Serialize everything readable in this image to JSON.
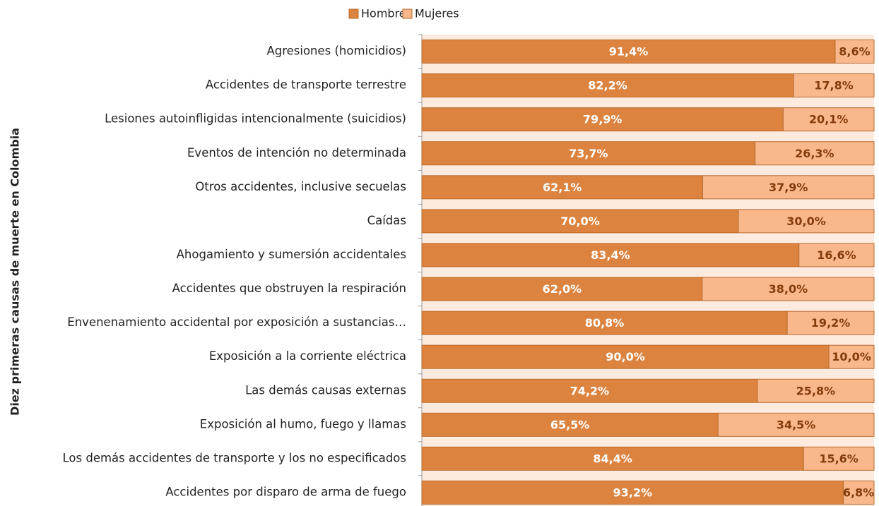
{
  "chart_data": {
    "type": "stacked_barh",
    "y_label": "Diez primeras causas de muerte en Colombia",
    "categories": [
      "Agresiones (homicidios)",
      "Accidentes de transporte terrestre",
      "Lesiones autoinfligidas intencionalmente (suicidios)",
      "Eventos de intención no determinada",
      "Otros accidentes, inclusive secuelas",
      "Caídas",
      "Ahogamiento y sumersión accidentales",
      "Accidentes que obstruyen la respiración",
      "Envenenamiento accidental por exposición a sustancias…",
      "Exposición a la corriente eléctrica",
      "Las demás causas externas",
      "Exposición al humo, fuego y llamas",
      "Los demás accidentes de transporte y los no especificados",
      "Accidentes por disparo de arma de fuego"
    ],
    "series": [
      {
        "name": "Hombres",
        "color": "#dc843f",
        "label_color": "#ffffff",
        "values": [
          91.4,
          82.2,
          79.9,
          73.7,
          62.1,
          70.0,
          83.4,
          62.0,
          80.8,
          90.0,
          74.2,
          65.5,
          84.4,
          93.2
        ],
        "value_labels": [
          "91,4%",
          "82,2%",
          "79,9%",
          "73,7%",
          "62,1%",
          "70,0%",
          "83,4%",
          "62,0%",
          "80,8%",
          "90,0%",
          "74,2%",
          "65,5%",
          "84,4%",
          "93,2%"
        ]
      },
      {
        "name": "Mujeres",
        "color": "#f8b88c",
        "label_color": "#843c0c",
        "values": [
          8.6,
          17.8,
          20.1,
          26.3,
          37.9,
          30.0,
          16.6,
          38.0,
          19.2,
          10.0,
          25.8,
          34.5,
          15.6,
          6.8
        ],
        "value_labels": [
          "8,6%",
          "17,8%",
          "20,1%",
          "26,3%",
          "37,9%",
          "30,0%",
          "16,6%",
          "38,0%",
          "19,2%",
          "10,0%",
          "25,8%",
          "34,5%",
          "15,6%",
          "6,8%"
        ]
      }
    ],
    "xlim": [
      0,
      100
    ],
    "legend": "top"
  }
}
